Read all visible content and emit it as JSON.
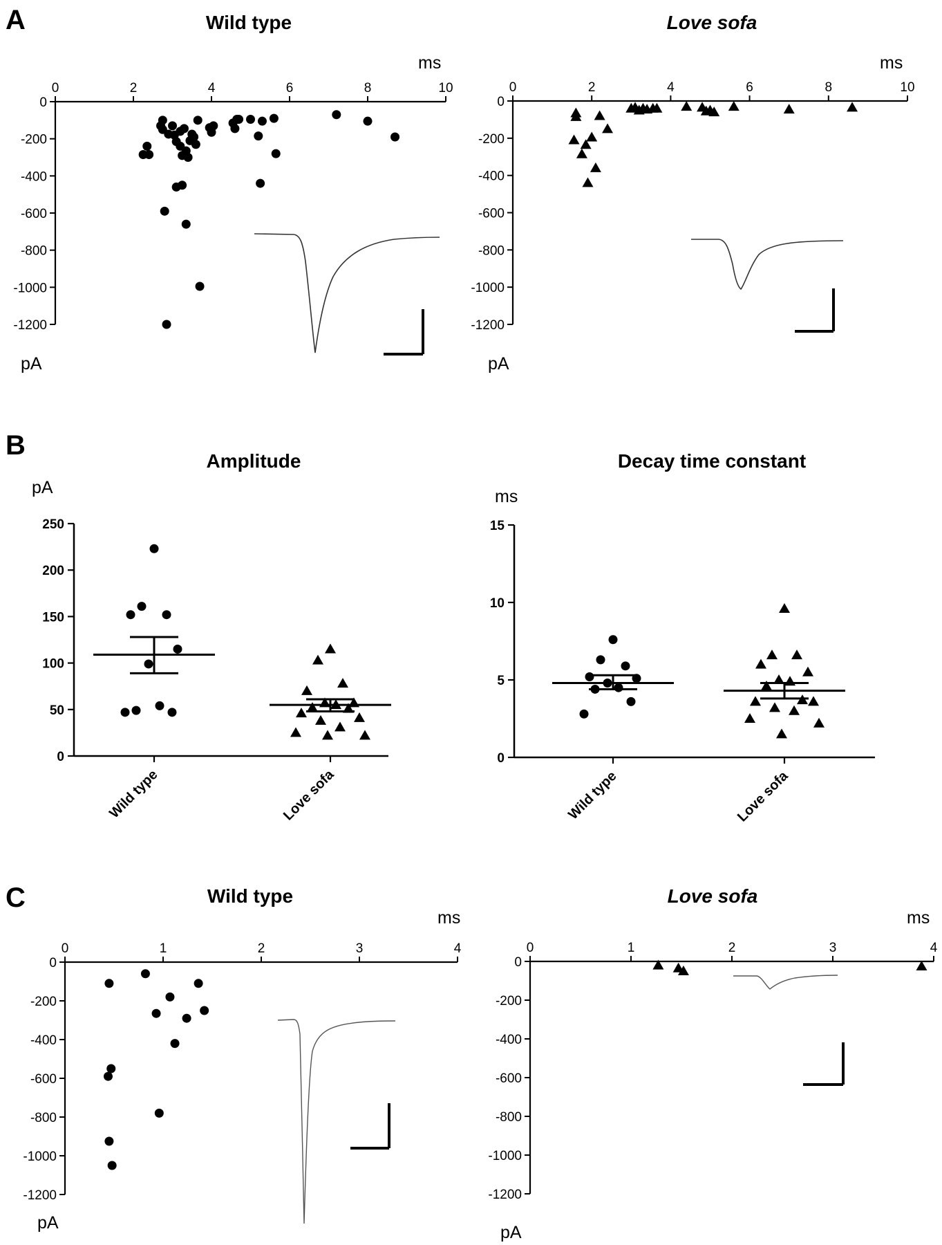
{
  "panels": [
    {
      "letter": "A"
    },
    {
      "letter": "B"
    },
    {
      "letter": "C"
    }
  ],
  "chart_data": [
    {
      "id": "A-wt",
      "panel": "A",
      "type": "scatter",
      "title": "Wild type",
      "title_italic": false,
      "xlabel": "ms",
      "ylabel": "pA",
      "xlim": [
        0,
        10
      ],
      "ylim": [
        -1200,
        0
      ],
      "xticks": [
        0,
        2,
        4,
        6,
        8,
        10
      ],
      "yticks": [
        0,
        -200,
        -400,
        -600,
        -800,
        -1000,
        -1200
      ],
      "marker": "circle",
      "points": [
        [
          2.25,
          -285
        ],
        [
          2.35,
          -240
        ],
        [
          2.4,
          -285
        ],
        [
          2.7,
          -130
        ],
        [
          2.75,
          -100
        ],
        [
          2.75,
          -150
        ],
        [
          2.8,
          -590
        ],
        [
          2.85,
          -1200
        ],
        [
          2.9,
          -175
        ],
        [
          3.0,
          -130
        ],
        [
          3.05,
          -180
        ],
        [
          3.1,
          -460
        ],
        [
          3.1,
          -215
        ],
        [
          3.2,
          -240
        ],
        [
          3.2,
          -160
        ],
        [
          3.25,
          -290
        ],
        [
          3.25,
          -450
        ],
        [
          3.3,
          -145
        ],
        [
          3.35,
          -265
        ],
        [
          3.35,
          -660
        ],
        [
          3.4,
          -300
        ],
        [
          3.45,
          -210
        ],
        [
          3.5,
          -175
        ],
        [
          3.55,
          -190
        ],
        [
          3.6,
          -230
        ],
        [
          3.65,
          -100
        ],
        [
          3.7,
          -995
        ],
        [
          3.95,
          -140
        ],
        [
          4.0,
          -165
        ],
        [
          4.05,
          -130
        ],
        [
          4.55,
          -115
        ],
        [
          4.6,
          -145
        ],
        [
          4.65,
          -95
        ],
        [
          4.7,
          -95
        ],
        [
          5.0,
          -95
        ],
        [
          5.2,
          -185
        ],
        [
          5.25,
          -440
        ],
        [
          5.3,
          -105
        ],
        [
          5.6,
          -90
        ],
        [
          5.65,
          -280
        ],
        [
          7.2,
          -70
        ],
        [
          8.0,
          -105
        ],
        [
          8.7,
          -190
        ]
      ],
      "scale_bar": true
    },
    {
      "id": "A-ls",
      "panel": "A",
      "type": "scatter",
      "title": "Love sofa",
      "title_italic": true,
      "xlabel": "ms",
      "ylabel": "pA",
      "xlim": [
        0,
        10
      ],
      "ylim": [
        -1200,
        0
      ],
      "xticks": [
        0,
        2,
        4,
        6,
        8,
        10
      ],
      "yticks": [
        0,
        -200,
        -400,
        -600,
        -800,
        -1000,
        -1200
      ],
      "marker": "triangle",
      "points": [
        [
          1.55,
          -210
        ],
        [
          1.6,
          -65
        ],
        [
          1.6,
          -85
        ],
        [
          1.75,
          -285
        ],
        [
          1.85,
          -235
        ],
        [
          1.9,
          -440
        ],
        [
          2.0,
          -195
        ],
        [
          2.1,
          -360
        ],
        [
          2.2,
          -80
        ],
        [
          2.4,
          -150
        ],
        [
          3.0,
          -40
        ],
        [
          3.1,
          -35
        ],
        [
          3.2,
          -50
        ],
        [
          3.3,
          -40
        ],
        [
          3.4,
          -45
        ],
        [
          3.55,
          -40
        ],
        [
          3.65,
          -40
        ],
        [
          4.4,
          -30
        ],
        [
          4.8,
          -35
        ],
        [
          4.9,
          -55
        ],
        [
          5.0,
          -50
        ],
        [
          5.1,
          -60
        ],
        [
          5.6,
          -30
        ],
        [
          7.0,
          -45
        ],
        [
          8.6,
          -35
        ]
      ],
      "scale_bar": true
    },
    {
      "id": "B-amp",
      "panel": "B",
      "type": "scatter",
      "title": "Amplitude",
      "title_italic": false,
      "ylabel": "pA",
      "ylim": [
        0,
        250
      ],
      "yticks": [
        0,
        50,
        100,
        150,
        200,
        250
      ],
      "categories": [
        "Wild type",
        "Love sofa"
      ],
      "series": [
        {
          "category": "Wild type",
          "marker": "circle",
          "mean": 109,
          "sem_low": 89,
          "sem_high": 128,
          "values": [
            223,
            161,
            152,
            152,
            115,
            99,
            54,
            49,
            47,
            47
          ]
        },
        {
          "category": "Love sofa",
          "marker": "triangle",
          "mean": 55,
          "sem_low": 48,
          "sem_high": 61,
          "values": [
            115,
            103,
            78,
            70,
            57,
            57,
            55,
            52,
            46,
            41,
            38,
            31,
            25,
            22,
            22,
            51
          ]
        }
      ]
    },
    {
      "id": "B-decay",
      "panel": "B",
      "type": "scatter",
      "title": "Decay time constant",
      "title_italic": false,
      "ylabel": "ms",
      "ylim": [
        0,
        15
      ],
      "yticks": [
        0,
        5,
        10,
        15
      ],
      "categories": [
        "Wild type",
        "Love sofa"
      ],
      "series": [
        {
          "category": "Wild type",
          "marker": "circle",
          "mean": 4.8,
          "sem_low": 4.4,
          "sem_high": 5.3,
          "values": [
            7.6,
            6.3,
            5.9,
            5.2,
            5.1,
            4.8,
            4.5,
            4.4,
            3.6,
            2.8
          ]
        },
        {
          "category": "Love sofa",
          "marker": "triangle",
          "mean": 4.3,
          "sem_low": 3.8,
          "sem_high": 4.8,
          "values": [
            9.6,
            6.6,
            6.6,
            6.0,
            5.5,
            5.0,
            4.9,
            4.6,
            3.7,
            3.6,
            3.6,
            3.2,
            3.0,
            2.5,
            2.2,
            1.5
          ]
        }
      ]
    },
    {
      "id": "C-wt",
      "panel": "C",
      "type": "scatter",
      "title": "Wild type",
      "title_italic": false,
      "xlabel": "ms",
      "ylabel": "pA",
      "xlim": [
        0,
        4
      ],
      "ylim": [
        -1200,
        0
      ],
      "xticks": [
        0,
        1,
        2,
        3,
        4
      ],
      "yticks": [
        0,
        -200,
        -400,
        -600,
        -800,
        -1000,
        -1200
      ],
      "marker": "circle",
      "points": [
        [
          0.45,
          -110
        ],
        [
          0.44,
          -590
        ],
        [
          0.47,
          -550
        ],
        [
          0.45,
          -925
        ],
        [
          0.48,
          -1050
        ],
        [
          0.82,
          -60
        ],
        [
          0.93,
          -265
        ],
        [
          1.07,
          -180
        ],
        [
          1.12,
          -420
        ],
        [
          1.24,
          -290
        ],
        [
          1.36,
          -110
        ],
        [
          1.42,
          -250
        ],
        [
          0.96,
          -780
        ]
      ],
      "scale_bar": true
    },
    {
      "id": "C-ls",
      "panel": "C",
      "type": "scatter",
      "title": "Love sofa",
      "title_italic": true,
      "xlabel": "ms",
      "ylabel": "pA",
      "xlim": [
        0,
        4
      ],
      "ylim": [
        -1200,
        0
      ],
      "xticks": [
        0,
        1,
        2,
        3,
        4
      ],
      "yticks": [
        0,
        -200,
        -400,
        -600,
        -800,
        -1000,
        -1200
      ],
      "marker": "triangle",
      "points": [
        [
          1.27,
          -20
        ],
        [
          1.47,
          -35
        ],
        [
          1.52,
          -50
        ],
        [
          3.88,
          -25
        ]
      ],
      "scale_bar": true
    }
  ]
}
